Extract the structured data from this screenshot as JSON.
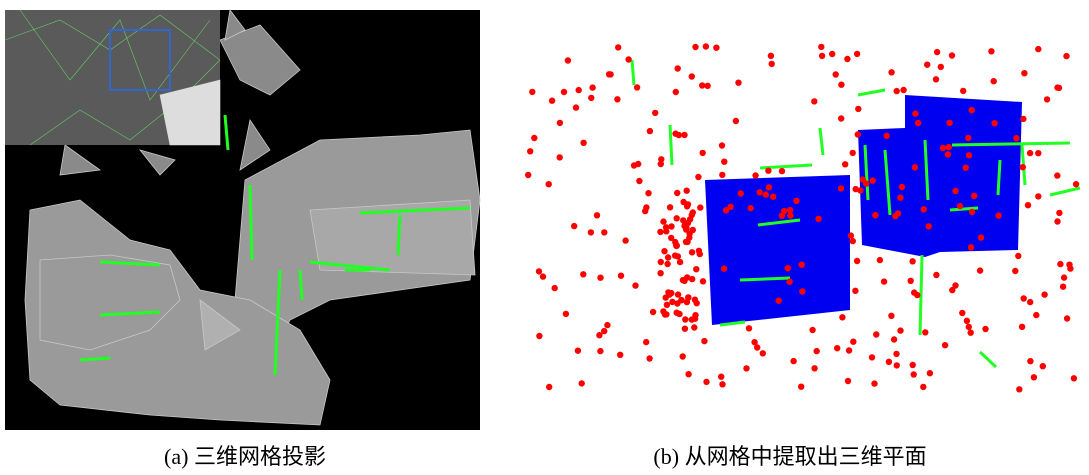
{
  "figure": {
    "panels": [
      {
        "caption": "(a) 三维网格投影"
      },
      {
        "caption": "(b) 从网格中提取出三维平面"
      }
    ]
  }
}
